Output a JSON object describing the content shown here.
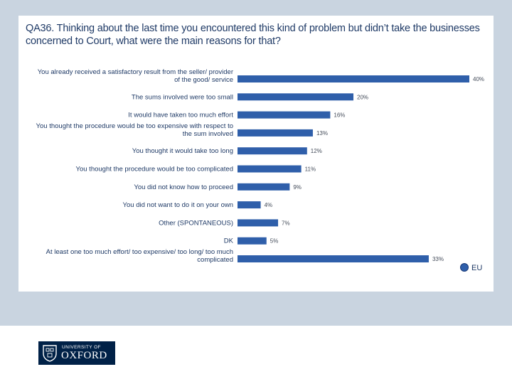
{
  "chart_data": {
    "type": "bar",
    "orientation": "horizontal",
    "title": "QA36. Thinking about the last time you encountered this kind of problem but didn’t take the businesses concerned to Court, what were the main reasons for that?",
    "categories": [
      [
        "You already received a satisfactory result from the seller/ provider",
        "of the good/ service"
      ],
      [
        "The sums involved were too small"
      ],
      [
        "It would have taken too much effort"
      ],
      [
        "You thought the procedure would be too expensive with respect to",
        "the sum involved"
      ],
      [
        "You thought it would take too long"
      ],
      [
        "You thought the procedure would be too complicated"
      ],
      [
        "You did not know how to proceed"
      ],
      [
        "You did not want to do it on your own"
      ],
      [
        "Other (SPONTANEOUS)"
      ],
      [
        "DK"
      ],
      [
        "At least one too much effort/ too expensive/ too long/ too much",
        "complicated"
      ]
    ],
    "values": [
      40,
      20,
      16,
      13,
      12,
      11,
      9,
      4,
      7,
      5,
      33
    ],
    "value_labels": [
      "40%",
      "20%",
      "16%",
      "13%",
      "12%",
      "11%",
      "9%",
      "4%",
      "7%",
      "5%",
      "33%"
    ],
    "series_name": "EU",
    "xlim": [
      0,
      40
    ],
    "legend_position": "bottom-right"
  },
  "colors": {
    "bar": "#2f5faa",
    "slide_background": "#c9d4e0",
    "title": "#1f3a66",
    "logo_background": "#002147"
  },
  "footer": {
    "logo_small": "UNIVERSITY OF",
    "logo_big": "OXFORD",
    "logo_icon": "oxford-crest-icon"
  }
}
